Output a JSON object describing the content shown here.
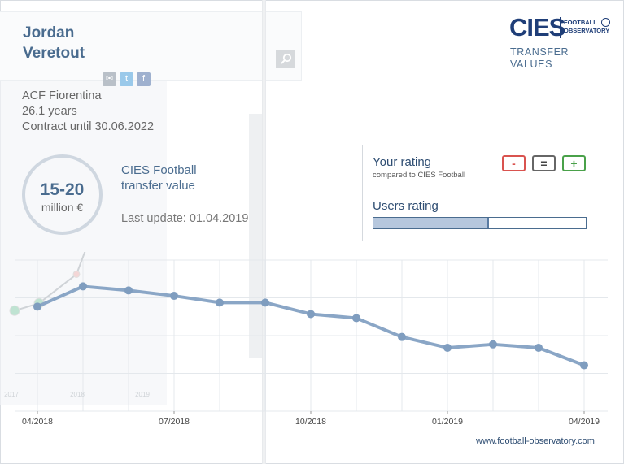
{
  "player": {
    "name": "Jordan Veretout",
    "club": "ACF Fiorentina",
    "age": "26.1 years",
    "contract": "Contract until 30.06.2022"
  },
  "valuation": {
    "value": "15-20",
    "unit": "million €",
    "title": "CIES Football transfer value",
    "last_update": "Last update: 01.04.2019"
  },
  "share": {
    "mail": "✉",
    "twitter": "t",
    "facebook": "f"
  },
  "search": {
    "icon": "search-icon",
    "glyph": "⌕"
  },
  "logo": {
    "main": "CIES",
    "sub_line1": "FOOTBALL",
    "sub_line2": "OBSERVATORY",
    "tagline_line1": "TRANSFER",
    "tagline_line2": "VALUES"
  },
  "rating": {
    "your_rating": "Your rating",
    "compared": "compared to CIES Football",
    "minus": "-",
    "equal": "=",
    "plus": "+",
    "users_rating": "Users rating",
    "users_level": 0.54
  },
  "colors": {
    "accent": "#4a6c8f",
    "line": "#8aa6c6",
    "grid": "#e4e8ec",
    "minus": "#d9534f",
    "plus": "#4aa14a"
  },
  "footer": {
    "website": "www.football-observatory.com"
  },
  "chart_data": {
    "type": "line",
    "title": "",
    "xlabel": "",
    "ylabel": "",
    "grid": true,
    "x_ticks": [
      "04/2018",
      "07/2018",
      "10/2018",
      "01/2019",
      "04/2019"
    ],
    "series": [
      {
        "name": "",
        "x": [
          "04/2018",
          "05/2018",
          "06/2018",
          "07/2018",
          "08/2018",
          "09/2018",
          "10/2018",
          "11/2018",
          "12/2018",
          "01/2019",
          "02/2019",
          "03/2019",
          "04/2019"
        ],
        "values": [
          14.9,
          17.9,
          17.3,
          16.5,
          15.5,
          15.5,
          13.8,
          13.2,
          10.4,
          8.8,
          9.3,
          8.8,
          6.2
        ]
      }
    ],
    "ghost_series": {
      "x_ticks": [
        "2017",
        "2018",
        "2019"
      ],
      "values": [
        14.3,
        15.4,
        19.7,
        31.3,
        40.5
      ]
    }
  }
}
